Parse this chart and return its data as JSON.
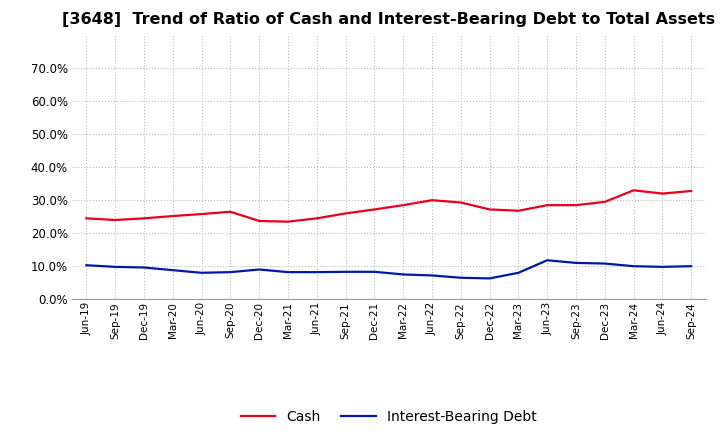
{
  "title": "[3648]  Trend of Ratio of Cash and Interest-Bearing Debt to Total Assets",
  "x_labels": [
    "Jun-19",
    "Sep-19",
    "Dec-19",
    "Mar-20",
    "Jun-20",
    "Sep-20",
    "Dec-20",
    "Mar-21",
    "Jun-21",
    "Sep-21",
    "Dec-21",
    "Mar-22",
    "Jun-22",
    "Sep-22",
    "Dec-22",
    "Mar-23",
    "Jun-23",
    "Sep-23",
    "Dec-23",
    "Mar-24",
    "Jun-24",
    "Sep-24"
  ],
  "cash": [
    0.245,
    0.24,
    0.245,
    0.252,
    0.258,
    0.265,
    0.237,
    0.235,
    0.245,
    0.26,
    0.272,
    0.285,
    0.3,
    0.293,
    0.272,
    0.268,
    0.285,
    0.285,
    0.295,
    0.33,
    0.32,
    0.328
  ],
  "debt": [
    0.103,
    0.098,
    0.096,
    0.088,
    0.08,
    0.082,
    0.09,
    0.082,
    0.082,
    0.083,
    0.083,
    0.075,
    0.072,
    0.065,
    0.063,
    0.08,
    0.118,
    0.11,
    0.108,
    0.1,
    0.098,
    0.1
  ],
  "cash_color": "#e8001c",
  "debt_color": "#0018a8",
  "ylim": [
    0.0,
    0.8
  ],
  "yticks": [
    0.0,
    0.1,
    0.2,
    0.3,
    0.4,
    0.5,
    0.6,
    0.7
  ],
  "title_fontsize": 11.5,
  "background_color": "#ffffff",
  "grid_color": "#bbbbbb",
  "legend_cash": "Cash",
  "legend_debt": "Interest-Bearing Debt",
  "line_width": 1.6
}
